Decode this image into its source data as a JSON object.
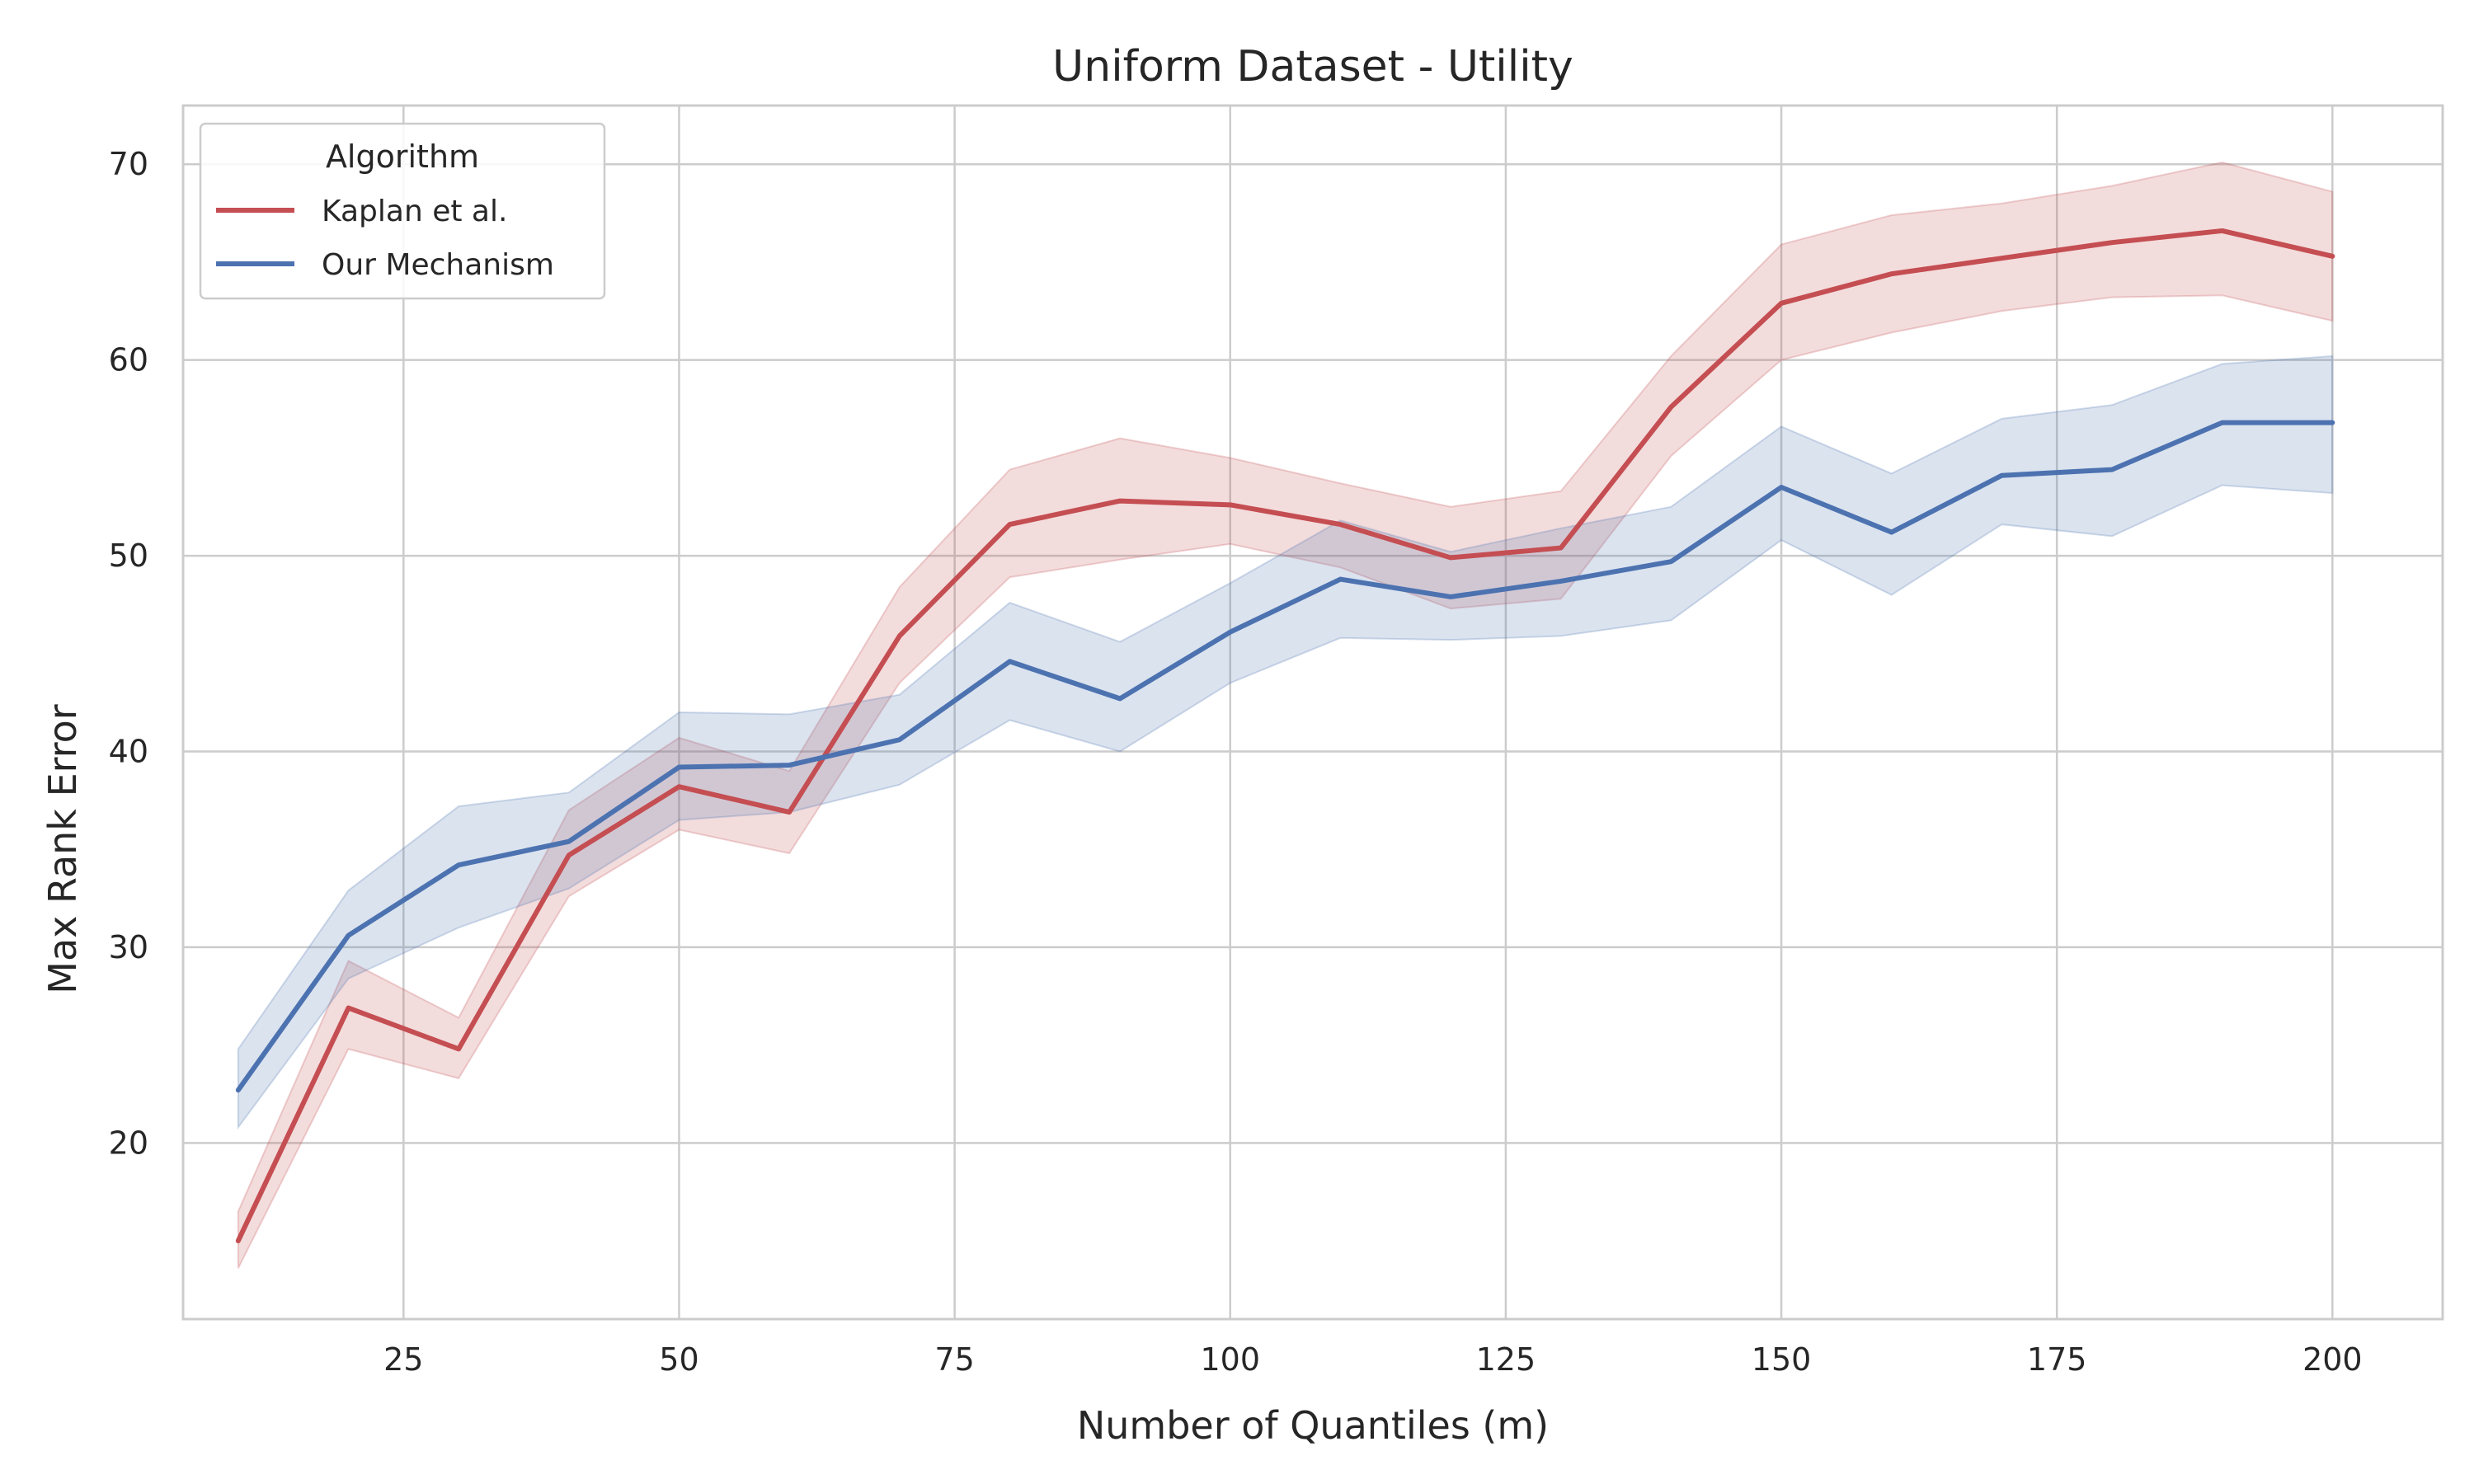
{
  "chart_data": {
    "type": "line",
    "title": "Uniform Dataset - Utility",
    "xlabel": "Number of Quantiles (m)",
    "ylabel": "Max Rank Error",
    "xlim": [
      5,
      210
    ],
    "ylim": [
      11,
      73
    ],
    "xticks": [
      25,
      50,
      75,
      100,
      125,
      150,
      175,
      200
    ],
    "yticks": [
      20,
      30,
      40,
      50,
      60,
      70
    ],
    "grid": true,
    "legend": {
      "title": "Algorithm",
      "placement": "top-left"
    },
    "x": [
      10,
      20,
      30,
      40,
      50,
      60,
      70,
      80,
      90,
      100,
      110,
      120,
      130,
      140,
      150,
      160,
      170,
      180,
      190,
      200
    ],
    "series": [
      {
        "name": "Kaplan et al.",
        "color": "#c44e52",
        "values": [
          15.0,
          26.9,
          24.8,
          34.7,
          38.2,
          36.9,
          45.9,
          51.6,
          52.8,
          52.6,
          51.6,
          49.9,
          50.4,
          57.6,
          62.9,
          64.4,
          65.2,
          66.0,
          66.6,
          65.3
        ],
        "lower": [
          13.6,
          24.8,
          23.3,
          32.6,
          36.0,
          34.8,
          43.5,
          48.9,
          49.8,
          50.6,
          49.4,
          47.3,
          47.8,
          55.1,
          60.0,
          61.4,
          62.5,
          63.2,
          63.3,
          62.0
        ],
        "upper": [
          16.5,
          29.3,
          26.4,
          37.0,
          40.7,
          39.0,
          48.4,
          54.4,
          56.0,
          55.0,
          53.7,
          52.5,
          53.3,
          60.2,
          65.9,
          67.4,
          68.0,
          68.9,
          70.1,
          68.6
        ]
      },
      {
        "name": "Our Mechanism",
        "color": "#4c72b0",
        "values": [
          22.7,
          30.6,
          34.2,
          35.4,
          39.2,
          39.3,
          40.6,
          44.6,
          42.7,
          46.1,
          48.8,
          47.9,
          48.7,
          49.7,
          53.5,
          51.2,
          54.1,
          54.4,
          56.8,
          56.8
        ],
        "lower": [
          20.8,
          28.4,
          31.0,
          33.0,
          36.5,
          36.9,
          38.3,
          41.6,
          40.0,
          43.5,
          45.8,
          45.7,
          45.9,
          46.7,
          50.8,
          48.0,
          51.6,
          51.0,
          53.6,
          53.2
        ],
        "upper": [
          24.8,
          32.9,
          37.2,
          37.9,
          42.0,
          41.9,
          42.9,
          47.6,
          45.6,
          48.6,
          51.8,
          50.2,
          51.4,
          52.5,
          56.6,
          54.2,
          57.0,
          57.7,
          59.8,
          60.2
        ]
      }
    ]
  }
}
